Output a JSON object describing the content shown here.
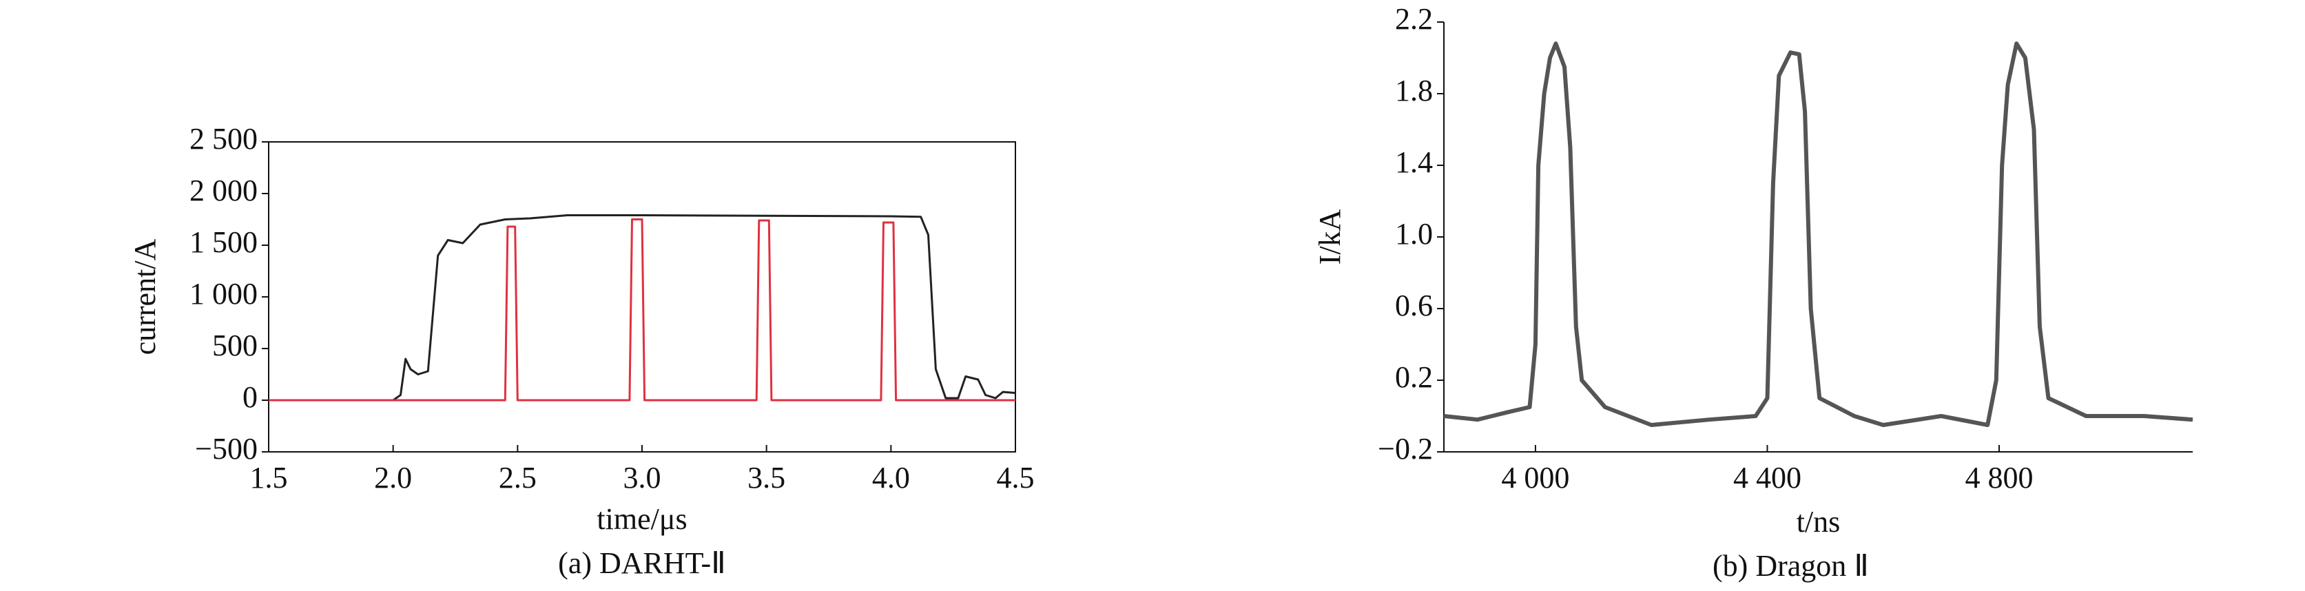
{
  "chart_data": [
    {
      "type": "line",
      "x_label": "time/μs",
      "y_label": "current/A",
      "caption": "(a) DARHT-Ⅱ",
      "xlim": [
        1.5,
        4.5
      ],
      "xticks": [
        1.5,
        {
          "value": 2,
          "label": "2.0"
        },
        2.5,
        {
          "value": 3,
          "label": "3.0"
        },
        3.5,
        {
          "value": 4,
          "label": "4.0"
        },
        4.5
      ],
      "ylim": [
        -500,
        2500
      ],
      "yticks": [
        {
          "value": -500,
          "label": "−500"
        },
        0,
        500,
        {
          "value": 1000,
          "label": "1 000"
        },
        {
          "value": 1500,
          "label": "1 500"
        },
        {
          "value": 2000,
          "label": "2 000"
        },
        {
          "value": 2500,
          "label": "2 500"
        }
      ],
      "series": [
        {
          "color": "#222222",
          "x": [
            1.5,
            2.0,
            2.03,
            2.05,
            2.07,
            2.1,
            2.14,
            2.18,
            2.22,
            2.28,
            2.35,
            2.45,
            2.55,
            2.7,
            3.0,
            3.5,
            4.0,
            4.12,
            4.15,
            4.18,
            4.22,
            4.27,
            4.3,
            4.35,
            4.38,
            4.42,
            4.45,
            4.5
          ],
          "values": [
            0,
            0,
            50,
            400,
            300,
            250,
            280,
            1400,
            1550,
            1520,
            1700,
            1750,
            1760,
            1790,
            1790,
            1785,
            1780,
            1775,
            1600,
            300,
            20,
            20,
            230,
            200,
            50,
            20,
            80,
            70
          ]
        },
        {
          "color": "#e03040",
          "x": [
            1.5,
            2.45,
            2.46,
            2.49,
            2.5,
            2.95,
            2.96,
            3.0,
            3.01,
            3.46,
            3.47,
            3.51,
            3.52,
            3.96,
            3.97,
            4.01,
            4.02,
            4.5
          ],
          "values": [
            0,
            0,
            1680,
            1680,
            0,
            0,
            1750,
            1750,
            0,
            0,
            1740,
            1740,
            0,
            0,
            1720,
            1720,
            0,
            0
          ]
        }
      ]
    },
    {
      "type": "line",
      "x_label": "t/ns",
      "y_label": "I/kA",
      "caption": "(b) Dragon Ⅱ",
      "xlim": [
        3842,
        5134
      ],
      "xticks": [
        {
          "value": 4000,
          "label": "4 000"
        },
        {
          "value": 4400,
          "label": "4 400"
        },
        {
          "value": 4800,
          "label": "4 800"
        }
      ],
      "ylim": [
        -0.2,
        2.2
      ],
      "yticks": [
        {
          "value": -0.2,
          "label": "−0.2"
        },
        0.2,
        0.6,
        {
          "value": 1,
          "label": "1.0"
        },
        1.4,
        1.8,
        2.2
      ],
      "series": [
        {
          "color": "#555555",
          "x": [
            3842,
            3900,
            3950,
            3990,
            4000,
            4005,
            4015,
            4025,
            4035,
            4050,
            4060,
            4070,
            4080,
            4120,
            4200,
            4300,
            4380,
            4400,
            4410,
            4420,
            4440,
            4455,
            4465,
            4475,
            4490,
            4550,
            4600,
            4700,
            4780,
            4795,
            4805,
            4815,
            4830,
            4845,
            4860,
            4870,
            4885,
            4950,
            5050,
            5134
          ],
          "values": [
            0.0,
            -0.02,
            0.02,
            0.05,
            0.4,
            1.4,
            1.8,
            2.0,
            2.08,
            1.95,
            1.5,
            0.5,
            0.2,
            0.05,
            -0.05,
            -0.02,
            0.0,
            0.1,
            1.3,
            1.9,
            2.03,
            2.02,
            1.7,
            0.6,
            0.1,
            0.0,
            -0.05,
            0.0,
            -0.05,
            0.2,
            1.4,
            1.85,
            2.08,
            2.0,
            1.6,
            0.5,
            0.1,
            0.0,
            0.0,
            -0.02
          ]
        }
      ]
    }
  ]
}
